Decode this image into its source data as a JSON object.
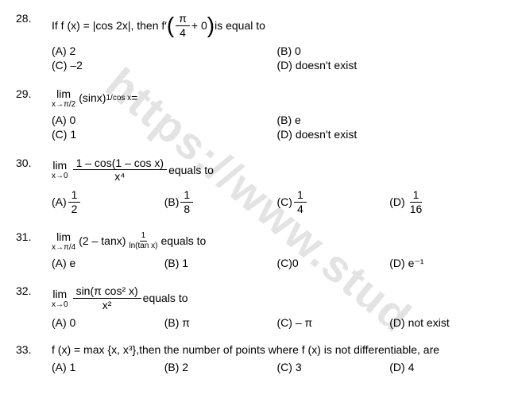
{
  "watermark": "https://www.stud",
  "questions": [
    {
      "num": "28.",
      "text_pre": "If f (x) = |cos 2x|, then f′ ",
      "paren_inner_num": "π",
      "paren_inner_den": "4",
      "paren_suffix": " + 0",
      "text_post": " is equal to",
      "layout": "two-col",
      "opts": [
        {
          "label": "(A) 2"
        },
        {
          "label": "(B) 0"
        },
        {
          "label": "(C) –2"
        },
        {
          "label": "(D) doesn't exist"
        }
      ]
    },
    {
      "num": "29.",
      "lim_sub": "x→π/2",
      "expr": "(sinx)",
      "sup": "1/cos x",
      "text_post": " =",
      "layout": "two-col",
      "opts": [
        {
          "label": "(A) 0"
        },
        {
          "label": "(B) e"
        },
        {
          "label": "(C) 1"
        },
        {
          "label": "(D) doesn't exist"
        }
      ]
    },
    {
      "num": "30.",
      "lim_sub": "x→0",
      "frac_num": "1 – cos(1 – cos x)",
      "frac_den": "x⁴",
      "text_post": " equals  to",
      "layout": "four-col",
      "opts": [
        {
          "label": "(A) ",
          "fnum": "1",
          "fden": "2"
        },
        {
          "label": "(B)",
          "fnum": "1",
          "fden": "8"
        },
        {
          "label": "(C)",
          "fnum": "1",
          "fden": "4"
        },
        {
          "label": "(D) ",
          "fnum": "1",
          "fden": "16"
        }
      ]
    },
    {
      "num": "31.",
      "lim_sub": "x→π/4",
      "expr": "(2 – tanx)",
      "sup_fnum": "1",
      "sup_fden": "ln(tan x)",
      "text_post": " equals  to",
      "layout": "four-col",
      "opts": [
        {
          "label": "(A) e"
        },
        {
          "label": "(B) 1"
        },
        {
          "label": "(C)0"
        },
        {
          "label": "(D) e⁻¹"
        }
      ]
    },
    {
      "num": "32.",
      "lim_sub": "x→0",
      "frac_num": "sin(π cos² x)",
      "frac_den": "x²",
      "text_post": " equals  to",
      "layout": "four-col",
      "opts": [
        {
          "label": "(A) 0"
        },
        {
          "label": "(B) π"
        },
        {
          "label": "(C) – π"
        },
        {
          "label": "(D) not exist"
        }
      ]
    },
    {
      "num": "33.",
      "text_pre": "f (x) = max {x, x³},then the number of points where f (x)  is not differentiable, are",
      "layout": "four-col",
      "opts": [
        {
          "label": "(A)  1"
        },
        {
          "label": "(B)  2"
        },
        {
          "label": "(C) 3"
        },
        {
          "label": "(D)  4"
        }
      ]
    }
  ]
}
